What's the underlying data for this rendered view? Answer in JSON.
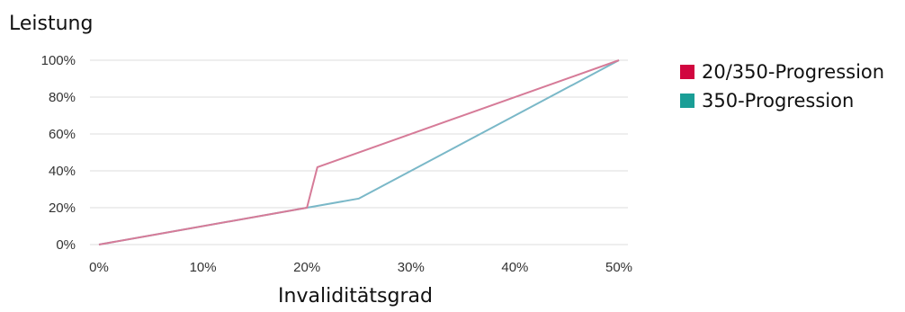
{
  "chart_data": {
    "type": "line",
    "ylabel": "Leistung",
    "xlabel": "Invaliditätsgrad",
    "xlim": [
      0,
      50
    ],
    "ylim": [
      0,
      100
    ],
    "x_ticks": [
      0,
      10,
      20,
      30,
      40,
      50
    ],
    "y_ticks": [
      0,
      20,
      40,
      60,
      80,
      100
    ],
    "x_tick_labels": [
      "0%",
      "10%",
      "20%",
      "30%",
      "40%",
      "50%"
    ],
    "y_tick_labels": [
      "0%",
      "20%",
      "40%",
      "60%",
      "80%",
      "100%"
    ],
    "grid": "horizontal",
    "legend_position": "right",
    "series": [
      {
        "name": "20/350-Progression",
        "color": "#d1063f",
        "line_color": "#d67b98",
        "points": [
          [
            0,
            0
          ],
          [
            20,
            20
          ],
          [
            21,
            42
          ],
          [
            50,
            100
          ]
        ]
      },
      {
        "name": "350-Progression",
        "color": "#1a9e96",
        "line_color": "#7ab8c8",
        "points": [
          [
            0,
            0
          ],
          [
            20,
            20
          ],
          [
            25,
            25
          ],
          [
            50,
            100
          ]
        ]
      }
    ]
  }
}
